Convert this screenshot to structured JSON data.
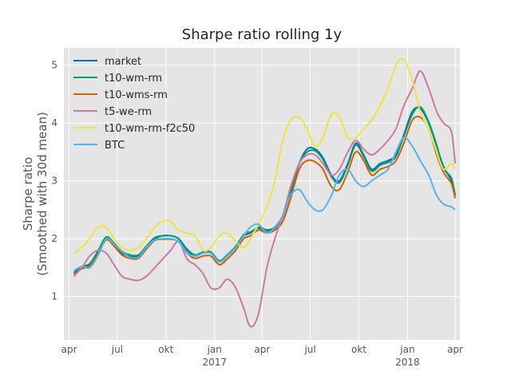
{
  "chart_data": {
    "type": "line",
    "title": "Sharpe ratio rolling 1y",
    "xlabel": "",
    "ylabel": "Sharpe ratio",
    "ylabel_sub": "(Smoothed with 30d mean)",
    "x_range": [
      "2016-03-22",
      "2018-04-10"
    ],
    "ylim": [
      0.25,
      5.3
    ],
    "yticks": [
      1,
      2,
      3,
      4,
      5
    ],
    "xticks": [
      {
        "date": "2016-04-01",
        "label": "apr",
        "sub": ""
      },
      {
        "date": "2016-07-01",
        "label": "jul",
        "sub": ""
      },
      {
        "date": "2016-10-01",
        "label": "okt",
        "sub": ""
      },
      {
        "date": "2017-01-01",
        "label": "jan",
        "sub": "2017"
      },
      {
        "date": "2017-04-01",
        "label": "apr",
        "sub": ""
      },
      {
        "date": "2017-07-01",
        "label": "jul",
        "sub": ""
      },
      {
        "date": "2017-10-01",
        "label": "okt",
        "sub": ""
      },
      {
        "date": "2018-01-01",
        "label": "jan",
        "sub": "2018"
      },
      {
        "date": "2018-04-01",
        "label": "apr",
        "sub": ""
      }
    ],
    "grid": true,
    "legend_position": "top-left",
    "dates": [
      "2016-04-10",
      "2016-04-25",
      "2016-05-10",
      "2016-05-25",
      "2016-06-10",
      "2016-06-25",
      "2016-07-10",
      "2016-07-25",
      "2016-08-10",
      "2016-08-25",
      "2016-09-10",
      "2016-09-25",
      "2016-10-10",
      "2016-10-25",
      "2016-11-10",
      "2016-11-25",
      "2016-12-10",
      "2016-12-25",
      "2017-01-10",
      "2017-01-25",
      "2017-02-10",
      "2017-02-25",
      "2017-03-10",
      "2017-03-25",
      "2017-04-10",
      "2017-04-25",
      "2017-05-10",
      "2017-05-25",
      "2017-06-10",
      "2017-06-25",
      "2017-07-10",
      "2017-07-25",
      "2017-08-10",
      "2017-08-25",
      "2017-09-10",
      "2017-09-25",
      "2017-10-10",
      "2017-10-25",
      "2017-11-10",
      "2017-11-25",
      "2017-12-10",
      "2017-12-25",
      "2018-01-10",
      "2018-01-25",
      "2018-02-10",
      "2018-02-25",
      "2018-03-10",
      "2018-03-25",
      "2018-04-01"
    ],
    "series": [
      {
        "name": "market",
        "color": "#0072B2",
        "values": [
          1.4,
          1.5,
          1.55,
          1.75,
          2.0,
          1.9,
          1.75,
          1.7,
          1.7,
          1.85,
          2.0,
          2.05,
          2.05,
          2.0,
          1.8,
          1.7,
          1.75,
          1.75,
          1.6,
          1.7,
          1.85,
          2.05,
          2.1,
          2.2,
          2.15,
          2.2,
          2.4,
          2.8,
          3.3,
          3.55,
          3.55,
          3.4,
          3.1,
          3.0,
          3.3,
          3.65,
          3.45,
          3.2,
          3.3,
          3.35,
          3.45,
          3.8,
          4.2,
          4.25,
          4.0,
          3.6,
          3.25,
          3.0,
          2.75
        ]
      },
      {
        "name": "t10-wm-rm",
        "color": "#009E73",
        "values": [
          1.42,
          1.52,
          1.57,
          1.78,
          2.03,
          1.92,
          1.78,
          1.72,
          1.72,
          1.87,
          2.02,
          2.05,
          2.05,
          2.0,
          1.82,
          1.72,
          1.77,
          1.77,
          1.62,
          1.72,
          1.87,
          2.07,
          2.12,
          2.18,
          2.12,
          2.18,
          2.38,
          2.82,
          3.3,
          3.5,
          3.52,
          3.37,
          3.07,
          2.97,
          3.27,
          3.62,
          3.42,
          3.17,
          3.27,
          3.32,
          3.42,
          3.77,
          4.15,
          4.28,
          4.02,
          3.62,
          3.22,
          3.05,
          2.75
        ]
      },
      {
        "name": "t10-wms-rm",
        "color": "#D55E00",
        "values": [
          1.38,
          1.48,
          1.53,
          1.72,
          1.98,
          1.87,
          1.72,
          1.66,
          1.66,
          1.82,
          1.97,
          1.99,
          1.99,
          1.95,
          1.75,
          1.66,
          1.7,
          1.7,
          1.55,
          1.65,
          1.8,
          2.0,
          2.05,
          2.15,
          2.1,
          2.15,
          2.3,
          2.7,
          3.2,
          3.35,
          3.33,
          3.2,
          2.9,
          2.85,
          3.15,
          3.5,
          3.35,
          3.1,
          3.2,
          3.25,
          3.35,
          3.65,
          4.05,
          4.1,
          3.9,
          3.45,
          3.15,
          2.95,
          2.7
        ]
      },
      {
        "name": "t5-we-rm",
        "color": "#CC79A7",
        "values": [
          1.35,
          1.5,
          1.7,
          1.8,
          1.75,
          1.55,
          1.35,
          1.3,
          1.28,
          1.35,
          1.5,
          1.65,
          1.8,
          1.95,
          1.65,
          1.55,
          1.4,
          1.15,
          1.15,
          1.3,
          1.15,
          0.8,
          0.48,
          0.7,
          1.5,
          2.0,
          2.4,
          2.9,
          3.3,
          3.45,
          3.45,
          3.3,
          3.1,
          3.2,
          3.5,
          3.7,
          3.55,
          3.45,
          3.55,
          3.7,
          3.9,
          4.3,
          4.6,
          4.9,
          4.6,
          4.2,
          4.0,
          3.85,
          3.3
        ]
      },
      {
        "name": "t10-wm-rm-f2c50",
        "color": "#F0E442",
        "values": [
          1.75,
          1.85,
          2.0,
          2.2,
          2.2,
          2.0,
          1.85,
          1.8,
          1.85,
          2.0,
          2.2,
          2.3,
          2.3,
          2.15,
          2.1,
          2.05,
          1.8,
          1.85,
          2.05,
          2.1,
          1.95,
          1.85,
          2.0,
          2.25,
          2.55,
          3.0,
          3.7,
          4.05,
          4.1,
          3.9,
          3.6,
          3.75,
          4.15,
          4.1,
          3.75,
          3.75,
          3.9,
          4.05,
          4.3,
          4.6,
          5.0,
          5.1,
          4.75,
          4.2,
          3.9,
          3.5,
          3.2,
          3.3,
          3.2
        ]
      },
      {
        "name": "BTC",
        "color": "#56B4E9",
        "values": [
          1.45,
          1.52,
          1.5,
          1.7,
          2.0,
          1.9,
          1.78,
          1.68,
          1.68,
          1.85,
          1.98,
          2.0,
          2.0,
          1.95,
          1.75,
          1.7,
          1.75,
          1.75,
          1.6,
          1.7,
          1.85,
          2.05,
          2.2,
          2.25,
          2.1,
          2.2,
          2.4,
          2.75,
          2.85,
          2.65,
          2.5,
          2.5,
          2.75,
          3.1,
          3.2,
          3.0,
          2.9,
          3.0,
          3.1,
          3.2,
          3.5,
          3.75,
          3.6,
          3.35,
          3.1,
          2.75,
          2.6,
          2.55,
          2.5
        ]
      }
    ]
  }
}
